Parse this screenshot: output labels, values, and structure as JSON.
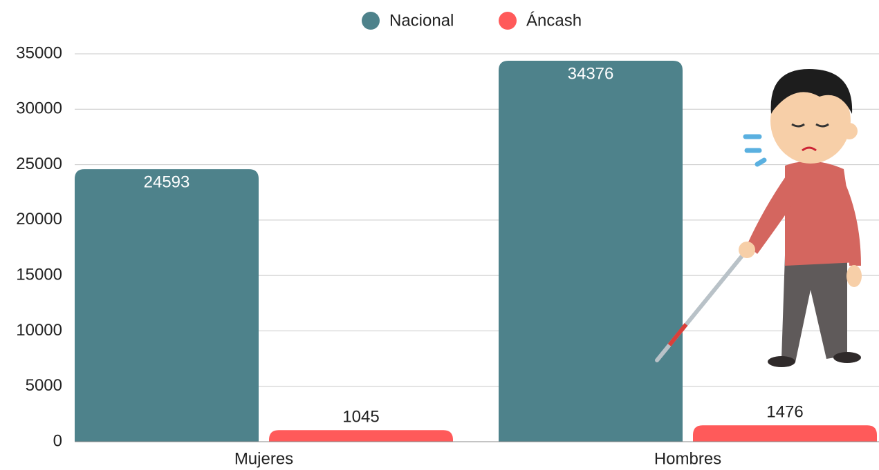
{
  "chart_data": {
    "type": "bar",
    "categories": [
      "Mujeres",
      "Hombres"
    ],
    "series": [
      {
        "name": "Nacional",
        "color": "#4e828b",
        "values": [
          24593,
          34376
        ]
      },
      {
        "name": "Áncash",
        "color": "#ff5a5a",
        "values": [
          1045,
          1476
        ]
      }
    ],
    "ylim": [
      0,
      35000
    ],
    "yticks": [
      0,
      5000,
      10000,
      15000,
      20000,
      25000,
      30000,
      35000
    ],
    "grid": true,
    "legend": "top"
  }
}
